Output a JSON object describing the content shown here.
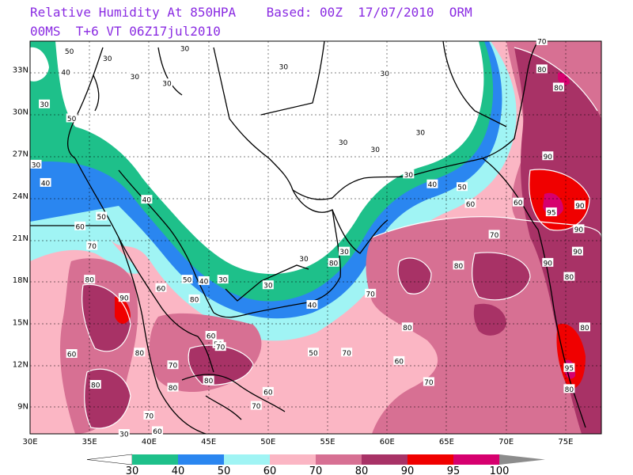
{
  "header": {
    "line1": "Relative Humidity At 850HPA    Based: 00Z  17/07/2010  ORM",
    "line2": "00MS  T+6 VT 06Z17jul2010"
  },
  "axes": {
    "lon_labels": [
      "30E",
      "35E",
      "40E",
      "45E",
      "50E",
      "55E",
      "60E",
      "65E",
      "70E",
      "75E"
    ],
    "lat_labels": [
      "33N",
      "30N",
      "27N",
      "24N",
      "21N",
      "18N",
      "15N",
      "12N",
      "9N"
    ],
    "lon_range": [
      30,
      78
    ],
    "lat_range": [
      7,
      35
    ]
  },
  "colorbar": {
    "labels": [
      "30",
      "40",
      "50",
      "60",
      "70",
      "80",
      "90",
      "95",
      "100"
    ],
    "colors": [
      "#1ec08a",
      "#2a86f0",
      "#a0f4f4",
      "#fbb6c4",
      "#d77093",
      "#a83266",
      "#f00000",
      "#d6006e"
    ],
    "low_color": "#ffffff",
    "high_color": "#8c8c8c"
  },
  "contour_labels": [
    {
      "t": "30",
      "lon": 36.5,
      "lat": 33.8
    },
    {
      "t": "30",
      "lon": 43.0,
      "lat": 34.5
    },
    {
      "t": "30",
      "lon": 51.3,
      "lat": 33.2
    },
    {
      "t": "30",
      "lon": 38.8,
      "lat": 32.5
    },
    {
      "t": "30",
      "lon": 31.2,
      "lat": 30.5
    },
    {
      "t": "30",
      "lon": 30.5,
      "lat": 26.2
    },
    {
      "t": "30",
      "lon": 41.5,
      "lat": 32.0
    },
    {
      "t": "30",
      "lon": 56.3,
      "lat": 27.8
    },
    {
      "t": "30",
      "lon": 59.8,
      "lat": 32.7
    },
    {
      "t": "30",
      "lon": 59.0,
      "lat": 27.3
    },
    {
      "t": "30",
      "lon": 62.8,
      "lat": 28.5
    },
    {
      "t": "30",
      "lon": 61.8,
      "lat": 25.5
    },
    {
      "t": "30",
      "lon": 56.4,
      "lat": 20.0
    },
    {
      "t": "30",
      "lon": 53.0,
      "lat": 19.5
    },
    {
      "t": "30",
      "lon": 46.2,
      "lat": 18.0
    },
    {
      "t": "30",
      "lon": 50.0,
      "lat": 17.6
    },
    {
      "t": "50",
      "lon": 33.3,
      "lat": 34.3
    },
    {
      "t": "50",
      "lon": 33.5,
      "lat": 29.5
    },
    {
      "t": "50",
      "lon": 66.3,
      "lat": 24.6
    },
    {
      "t": "50",
      "lon": 53.8,
      "lat": 12.8
    },
    {
      "t": "50",
      "lon": 43.2,
      "lat": 18.0
    },
    {
      "t": "50",
      "lon": 45.8,
      "lat": 13.4
    },
    {
      "t": "40",
      "lon": 33.0,
      "lat": 32.8
    },
    {
      "t": "40",
      "lon": 31.3,
      "lat": 24.9
    },
    {
      "t": "40",
      "lon": 39.8,
      "lat": 23.7
    },
    {
      "t": "40",
      "lon": 44.6,
      "lat": 17.9
    },
    {
      "t": "40",
      "lon": 53.7,
      "lat": 16.2
    },
    {
      "t": "40",
      "lon": 63.8,
      "lat": 24.8
    },
    {
      "t": "50",
      "lon": 36.0,
      "lat": 22.5
    },
    {
      "t": "60",
      "lon": 34.2,
      "lat": 21.8
    },
    {
      "t": "60",
      "lon": 41.0,
      "lat": 17.4
    },
    {
      "t": "60",
      "lon": 45.2,
      "lat": 14.0
    },
    {
      "t": "60",
      "lon": 33.5,
      "lat": 12.7
    },
    {
      "t": "60",
      "lon": 40.7,
      "lat": 7.2
    },
    {
      "t": "60",
      "lon": 50.0,
      "lat": 10.0
    },
    {
      "t": "60",
      "lon": 61.0,
      "lat": 12.2
    },
    {
      "t": "60",
      "lon": 67.0,
      "lat": 23.4
    },
    {
      "t": "70",
      "lon": 35.2,
      "lat": 20.4
    },
    {
      "t": "70",
      "lon": 40.0,
      "lat": 8.3
    },
    {
      "t": "70",
      "lon": 42.0,
      "lat": 11.9
    },
    {
      "t": "70",
      "lon": 46.0,
      "lat": 13.2
    },
    {
      "t": "70",
      "lon": 49.0,
      "lat": 9.0
    },
    {
      "t": "70",
      "lon": 56.6,
      "lat": 12.8
    },
    {
      "t": "70",
      "lon": 58.6,
      "lat": 17.0
    },
    {
      "t": "70",
      "lon": 63.5,
      "lat": 10.7
    },
    {
      "t": "70",
      "lon": 69.0,
      "lat": 21.2
    },
    {
      "t": "70",
      "lon": 73.0,
      "lat": 35.0
    },
    {
      "t": "80",
      "lon": 35.0,
      "lat": 18.0
    },
    {
      "t": "80",
      "lon": 39.2,
      "lat": 12.8
    },
    {
      "t": "80",
      "lon": 35.5,
      "lat": 10.5
    },
    {
      "t": "80",
      "lon": 42.0,
      "lat": 10.3
    },
    {
      "t": "80",
      "lon": 43.8,
      "lat": 16.6
    },
    {
      "t": "80",
      "lon": 45.0,
      "lat": 10.8
    },
    {
      "t": "80",
      "lon": 55.5,
      "lat": 19.2
    },
    {
      "t": "80",
      "lon": 61.7,
      "lat": 14.6
    },
    {
      "t": "80",
      "lon": 66.0,
      "lat": 19.0
    },
    {
      "t": "80",
      "lon": 73.0,
      "lat": 33.0
    },
    {
      "t": "80",
      "lon": 75.3,
      "lat": 18.2
    },
    {
      "t": "80",
      "lon": 76.6,
      "lat": 14.6
    },
    {
      "t": "80",
      "lon": 75.3,
      "lat": 10.2
    },
    {
      "t": "80",
      "lon": 74.4,
      "lat": 31.7
    },
    {
      "t": "90",
      "lon": 37.9,
      "lat": 16.7
    },
    {
      "t": "90",
      "lon": 73.5,
      "lat": 19.2
    },
    {
      "t": "90",
      "lon": 73.5,
      "lat": 26.8
    },
    {
      "t": "90",
      "lon": 76.2,
      "lat": 23.3
    },
    {
      "t": "90",
      "lon": 76.1,
      "lat": 21.6
    },
    {
      "t": "90",
      "lon": 76.0,
      "lat": 20.0
    },
    {
      "t": "95",
      "lon": 73.8,
      "lat": 22.8
    },
    {
      "t": "95",
      "lon": 75.3,
      "lat": 11.7
    },
    {
      "t": "60",
      "lon": 71.0,
      "lat": 23.5
    },
    {
      "t": "30",
      "lon": 37.9,
      "lat": 7.0
    }
  ]
}
